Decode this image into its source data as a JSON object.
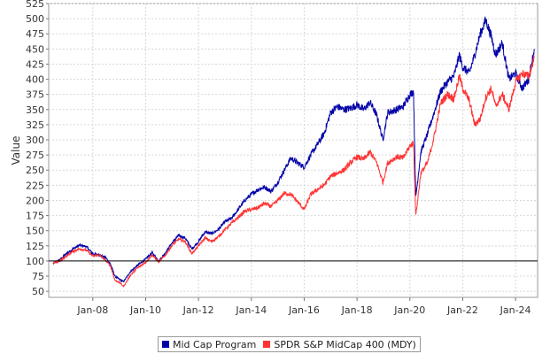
{
  "chart_data": {
    "type": "line",
    "title": "",
    "xlabel": "",
    "ylabel": "Value",
    "ylim": [
      40,
      525
    ],
    "xlim": [
      "2006-05-01",
      "2024-11-01"
    ],
    "grid": true,
    "legend_position": "bottom-center",
    "reference_line": {
      "y": 100,
      "color": "#000000"
    },
    "y_ticks": [
      50,
      75,
      100,
      125,
      150,
      175,
      200,
      225,
      250,
      275,
      300,
      325,
      350,
      375,
      400,
      425,
      450,
      475,
      500,
      525
    ],
    "x_ticks": [
      {
        "date": "2008-01-01",
        "label": "Jan-08"
      },
      {
        "date": "2010-01-01",
        "label": "Jan-10"
      },
      {
        "date": "2012-01-01",
        "label": "Jan-12"
      },
      {
        "date": "2014-01-01",
        "label": "Jan-14"
      },
      {
        "date": "2016-01-01",
        "label": "Jan-16"
      },
      {
        "date": "2018-01-01",
        "label": "Jan-18"
      },
      {
        "date": "2020-01-01",
        "label": "Jan-20"
      },
      {
        "date": "2022-01-01",
        "label": "Jan-22"
      },
      {
        "date": "2024-01-01",
        "label": "Jan-24"
      }
    ],
    "series": [
      {
        "name": "Mid Cap Program",
        "color": "#0000a8",
        "points": [
          [
            "2006-07-01",
            96
          ],
          [
            "2006-10-01",
            102
          ],
          [
            "2007-01-01",
            112
          ],
          [
            "2007-04-01",
            120
          ],
          [
            "2007-07-01",
            126
          ],
          [
            "2007-10-01",
            124
          ],
          [
            "2008-01-01",
            112
          ],
          [
            "2008-04-01",
            110
          ],
          [
            "2008-07-01",
            105
          ],
          [
            "2008-09-01",
            95
          ],
          [
            "2008-11-01",
            75
          ],
          [
            "2009-01-01",
            70
          ],
          [
            "2009-03-01",
            66
          ],
          [
            "2009-06-01",
            82
          ],
          [
            "2009-09-01",
            92
          ],
          [
            "2010-01-01",
            103
          ],
          [
            "2010-04-01",
            114
          ],
          [
            "2010-07-01",
            100
          ],
          [
            "2010-10-01",
            114
          ],
          [
            "2011-01-01",
            130
          ],
          [
            "2011-04-01",
            142
          ],
          [
            "2011-07-01",
            138
          ],
          [
            "2011-10-01",
            120
          ],
          [
            "2012-01-01",
            132
          ],
          [
            "2012-04-01",
            148
          ],
          [
            "2012-07-01",
            145
          ],
          [
            "2012-10-01",
            152
          ],
          [
            "2013-01-01",
            165
          ],
          [
            "2013-04-01",
            170
          ],
          [
            "2013-07-01",
            185
          ],
          [
            "2013-10-01",
            200
          ],
          [
            "2014-01-01",
            210
          ],
          [
            "2014-04-01",
            218
          ],
          [
            "2014-07-01",
            222
          ],
          [
            "2014-10-01",
            215
          ],
          [
            "2015-01-01",
            230
          ],
          [
            "2015-04-01",
            250
          ],
          [
            "2015-07-01",
            270
          ],
          [
            "2015-10-01",
            262
          ],
          [
            "2016-01-01",
            255
          ],
          [
            "2016-04-01",
            275
          ],
          [
            "2016-07-01",
            292
          ],
          [
            "2016-10-01",
            310
          ],
          [
            "2017-01-01",
            345
          ],
          [
            "2017-04-01",
            355
          ],
          [
            "2017-07-01",
            350
          ],
          [
            "2017-10-01",
            352
          ],
          [
            "2018-01-01",
            358
          ],
          [
            "2018-04-01",
            350
          ],
          [
            "2018-07-01",
            362
          ],
          [
            "2018-10-01",
            340
          ],
          [
            "2018-12-24",
            300
          ],
          [
            "2019-03-01",
            345
          ],
          [
            "2019-07-01",
            350
          ],
          [
            "2019-10-01",
            355
          ],
          [
            "2020-01-01",
            375
          ],
          [
            "2020-02-20",
            380
          ],
          [
            "2020-03-23",
            205
          ],
          [
            "2020-06-01",
            280
          ],
          [
            "2020-09-01",
            310
          ],
          [
            "2020-12-01",
            345
          ],
          [
            "2021-03-01",
            380
          ],
          [
            "2021-06-01",
            395
          ],
          [
            "2021-09-01",
            405
          ],
          [
            "2021-11-15",
            440
          ],
          [
            "2022-01-01",
            420
          ],
          [
            "2022-04-01",
            410
          ],
          [
            "2022-06-15",
            440
          ],
          [
            "2022-09-01",
            475
          ],
          [
            "2022-11-15",
            498
          ],
          [
            "2023-02-01",
            470
          ],
          [
            "2023-04-01",
            440
          ],
          [
            "2023-07-01",
            460
          ],
          [
            "2023-10-01",
            400
          ],
          [
            "2024-01-01",
            410
          ],
          [
            "2024-04-01",
            385
          ],
          [
            "2024-07-01",
            400
          ],
          [
            "2024-09-15",
            450
          ]
        ]
      },
      {
        "name": "SPDR S&P MidCap 400 (MDY)",
        "color": "#ff3333",
        "points": [
          [
            "2006-07-01",
            96
          ],
          [
            "2006-10-01",
            100
          ],
          [
            "2007-01-01",
            108
          ],
          [
            "2007-04-01",
            116
          ],
          [
            "2007-07-01",
            120
          ],
          [
            "2007-10-01",
            118
          ],
          [
            "2008-01-01",
            108
          ],
          [
            "2008-04-01",
            110
          ],
          [
            "2008-07-01",
            100
          ],
          [
            "2008-09-01",
            92
          ],
          [
            "2008-11-01",
            68
          ],
          [
            "2009-01-01",
            65
          ],
          [
            "2009-03-01",
            58
          ],
          [
            "2009-06-01",
            76
          ],
          [
            "2009-09-01",
            88
          ],
          [
            "2010-01-01",
            98
          ],
          [
            "2010-04-01",
            110
          ],
          [
            "2010-07-01",
            98
          ],
          [
            "2010-10-01",
            110
          ],
          [
            "2011-01-01",
            126
          ],
          [
            "2011-04-01",
            136
          ],
          [
            "2011-07-01",
            132
          ],
          [
            "2011-10-01",
            112
          ],
          [
            "2012-01-01",
            125
          ],
          [
            "2012-04-01",
            138
          ],
          [
            "2012-07-01",
            132
          ],
          [
            "2012-10-01",
            140
          ],
          [
            "2013-01-01",
            152
          ],
          [
            "2013-04-01",
            162
          ],
          [
            "2013-07-01",
            172
          ],
          [
            "2013-10-01",
            182
          ],
          [
            "2014-01-01",
            185
          ],
          [
            "2014-04-01",
            188
          ],
          [
            "2014-07-01",
            195
          ],
          [
            "2014-10-01",
            190
          ],
          [
            "2015-01-01",
            200
          ],
          [
            "2015-04-01",
            212
          ],
          [
            "2015-07-01",
            210
          ],
          [
            "2015-10-01",
            198
          ],
          [
            "2016-01-01",
            185
          ],
          [
            "2016-04-01",
            210
          ],
          [
            "2016-07-01",
            218
          ],
          [
            "2016-10-01",
            225
          ],
          [
            "2017-01-01",
            240
          ],
          [
            "2017-04-01",
            245
          ],
          [
            "2017-07-01",
            250
          ],
          [
            "2017-10-01",
            262
          ],
          [
            "2018-01-01",
            272
          ],
          [
            "2018-04-01",
            268
          ],
          [
            "2018-07-01",
            280
          ],
          [
            "2018-10-01",
            262
          ],
          [
            "2018-12-24",
            230
          ],
          [
            "2019-03-01",
            262
          ],
          [
            "2019-07-01",
            272
          ],
          [
            "2019-10-01",
            270
          ],
          [
            "2020-01-01",
            290
          ],
          [
            "2020-02-20",
            295
          ],
          [
            "2020-03-23",
            175
          ],
          [
            "2020-06-01",
            245
          ],
          [
            "2020-09-01",
            262
          ],
          [
            "2020-12-01",
            305
          ],
          [
            "2021-03-01",
            360
          ],
          [
            "2021-06-01",
            375
          ],
          [
            "2021-09-01",
            368
          ],
          [
            "2021-11-15",
            405
          ],
          [
            "2022-01-01",
            385
          ],
          [
            "2022-04-01",
            365
          ],
          [
            "2022-06-15",
            325
          ],
          [
            "2022-09-01",
            335
          ],
          [
            "2022-11-15",
            370
          ],
          [
            "2023-02-01",
            385
          ],
          [
            "2023-04-01",
            355
          ],
          [
            "2023-07-01",
            375
          ],
          [
            "2023-10-01",
            350
          ],
          [
            "2024-01-01",
            395
          ],
          [
            "2024-04-01",
            410
          ],
          [
            "2024-07-01",
            405
          ],
          [
            "2024-09-15",
            435
          ]
        ]
      }
    ]
  }
}
